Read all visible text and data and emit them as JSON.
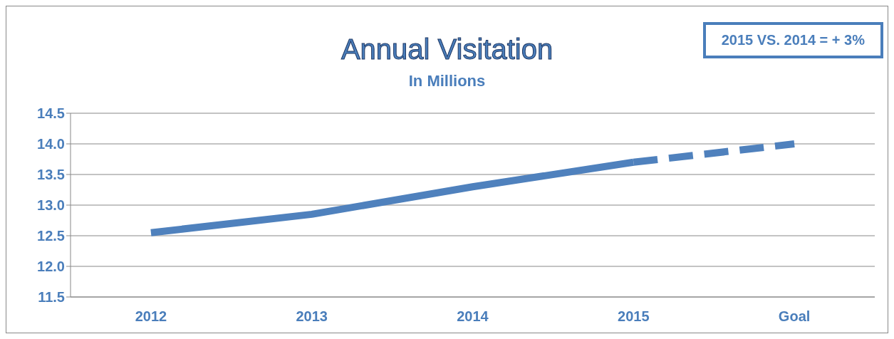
{
  "chart_data": {
    "type": "line",
    "title": "Annual Visitation",
    "subtitle": "In Millions",
    "annotations": [
      "2015 VS. 2014 = + 3%"
    ],
    "categories": [
      "2012",
      "2013",
      "2014",
      "2015",
      "Goal"
    ],
    "series": [
      {
        "color": "#4f81bd",
        "values": [
          12.55,
          12.85,
          13.3,
          13.7,
          null
        ],
        "line_style": "solid"
      },
      {
        "color": "#4f81bd",
        "values": [
          null,
          null,
          null,
          13.7,
          14.0
        ],
        "line_style": "dashed"
      }
    ],
    "ylim": [
      11.5,
      14.5
    ],
    "yticks": [
      11.5,
      {
        "value": 12,
        "label": "12.0"
      },
      12.5,
      {
        "value": 13,
        "label": "13.0"
      },
      13.5,
      {
        "value": 14,
        "label": "14.0"
      },
      14.5
    ],
    "grid": "y",
    "marker": "none"
  }
}
